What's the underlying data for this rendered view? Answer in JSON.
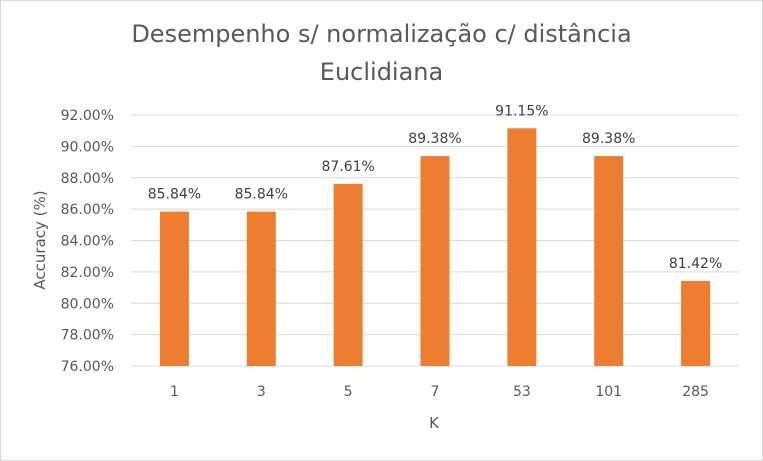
{
  "chart_data": {
    "type": "bar",
    "title": "Desempenho s/ normalização c/ distância Euclidiana",
    "title_lines": [
      "Desempenho s/ normalização c/ distância",
      "Euclidiana"
    ],
    "xlabel": "K",
    "ylabel": "Accuracy (%)",
    "categories": [
      "1",
      "3",
      "5",
      "7",
      "53",
      "101",
      "285"
    ],
    "values": [
      85.84,
      85.84,
      87.61,
      89.38,
      91.15,
      89.38,
      81.42
    ],
    "data_labels": [
      "85.84%",
      "85.84%",
      "87.61%",
      "89.38%",
      "91.15%",
      "89.38%",
      "81.42%"
    ],
    "ylim": [
      76,
      92
    ],
    "yticks": [
      76,
      78,
      80,
      82,
      84,
      86,
      88,
      90,
      92
    ],
    "ytick_labels": [
      "76.00%",
      "78.00%",
      "80.00%",
      "82.00%",
      "84.00%",
      "86.00%",
      "88.00%",
      "90.00%",
      "92.00%"
    ],
    "grid": true,
    "legend": "none",
    "bar_color": "#ed7d31",
    "grid_color": "#d9d9d9"
  }
}
